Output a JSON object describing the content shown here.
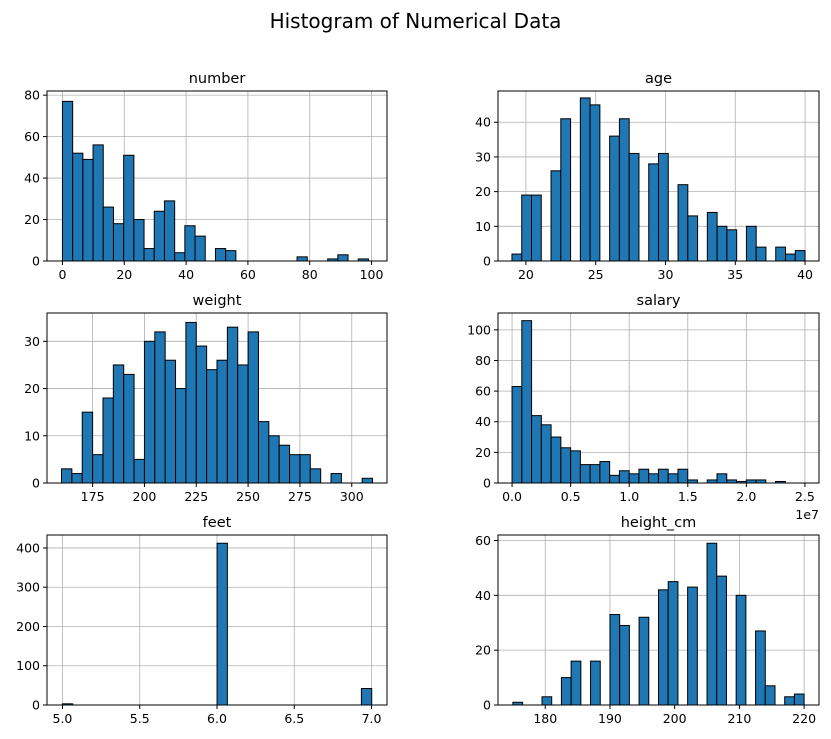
{
  "figure": {
    "title": "Histogram of Numerical Data",
    "bar_color": "#1f77b4",
    "edge_color": "#000000",
    "grid_color": "#b0b0b0"
  },
  "chart_data": [
    {
      "type": "bar",
      "title": "number",
      "bins": 30,
      "bin_start": 0,
      "bin_width": 3.3,
      "values": [
        77,
        52,
        49,
        56,
        26,
        18,
        51,
        20,
        6,
        24,
        29,
        4,
        17,
        12,
        0,
        6,
        5,
        0,
        0,
        0,
        0,
        0,
        0,
        2,
        0,
        0,
        1,
        3,
        0,
        1
      ],
      "xlim": [
        -5,
        105
      ],
      "ylim": [
        0,
        82
      ],
      "xticks": [
        0,
        20,
        40,
        60,
        80,
        100
      ],
      "xtick_labels": [
        "0",
        "20",
        "40",
        "60",
        "80",
        "100"
      ],
      "yticks": [
        0,
        20,
        40,
        60,
        80
      ],
      "ytick_labels": [
        "0",
        "20",
        "40",
        "60",
        "80"
      ],
      "grid": true
    },
    {
      "type": "bar",
      "title": "age",
      "bins": 30,
      "bin_start": 19,
      "bin_width": 0.7,
      "values": [
        2,
        19,
        19,
        0,
        26,
        41,
        0,
        47,
        45,
        0,
        36,
        41,
        31,
        0,
        28,
        31,
        0,
        22,
        13,
        0,
        14,
        10,
        9,
        0,
        10,
        4,
        0,
        4,
        2,
        3
      ],
      "xlim": [
        18,
        41
      ],
      "ylim": [
        0,
        49
      ],
      "xticks": [
        20,
        25,
        30,
        35,
        40
      ],
      "xtick_labels": [
        "20",
        "25",
        "30",
        "35",
        "40"
      ],
      "yticks": [
        0,
        10,
        20,
        30,
        40
      ],
      "ytick_labels": [
        "0",
        "10",
        "20",
        "30",
        "40"
      ],
      "grid": true
    },
    {
      "type": "bar",
      "title": "weight",
      "bins": 30,
      "bin_start": 160,
      "bin_width": 5,
      "values": [
        3,
        2,
        15,
        6,
        18,
        25,
        23,
        5,
        30,
        32,
        26,
        20,
        34,
        29,
        24,
        26,
        33,
        25,
        32,
        13,
        10,
        8,
        6,
        6,
        3,
        0,
        2,
        0,
        0,
        1
      ],
      "xlim": [
        153,
        317
      ],
      "ylim": [
        0,
        36
      ],
      "xticks": [
        175,
        200,
        225,
        250,
        275,
        300
      ],
      "xtick_labels": [
        "175",
        "200",
        "225",
        "250",
        "275",
        "300"
      ],
      "yticks": [
        0,
        10,
        20,
        30
      ],
      "ytick_labels": [
        "0",
        "10",
        "20",
        "30"
      ],
      "grid": true
    },
    {
      "type": "bar",
      "title": "salary",
      "bins": 30,
      "bin_start": 0,
      "bin_width": 0.0833,
      "values": [
        63,
        106,
        44,
        38,
        30,
        23,
        21,
        12,
        12,
        14,
        5,
        8,
        6,
        9,
        6,
        9,
        6,
        9,
        2,
        0,
        2,
        6,
        2,
        1,
        2,
        2,
        0,
        1,
        0,
        0
      ],
      "xlim": [
        -0.12,
        2.62
      ],
      "ylim": [
        0,
        111
      ],
      "xticks": [
        0,
        0.5,
        1.0,
        1.5,
        2.0,
        2.5
      ],
      "xtick_labels": [
        "0.0",
        "0.5",
        "1.0",
        "1.5",
        "2.0",
        "2.5"
      ],
      "yticks": [
        0,
        20,
        40,
        60,
        80,
        100
      ],
      "ytick_labels": [
        "0",
        "20",
        "40",
        "60",
        "80",
        "100"
      ],
      "offset_label": "1e7",
      "grid": true
    },
    {
      "type": "bar",
      "title": "feet",
      "bins": 30,
      "bin_start": 5,
      "bin_width": 0.0667,
      "values": [
        3,
        0,
        0,
        0,
        0,
        0,
        0,
        0,
        0,
        0,
        0,
        0,
        0,
        0,
        0,
        412,
        0,
        0,
        0,
        0,
        0,
        0,
        0,
        0,
        0,
        0,
        0,
        0,
        0,
        42
      ],
      "xlim": [
        4.9,
        7.1
      ],
      "ylim": [
        0,
        433
      ],
      "xticks": [
        5.0,
        5.5,
        6.0,
        6.5,
        7.0
      ],
      "xtick_labels": [
        "5.0",
        "5.5",
        "6.0",
        "6.5",
        "7.0"
      ],
      "yticks": [
        0,
        100,
        200,
        300,
        400
      ],
      "ytick_labels": [
        "0",
        "100",
        "200",
        "300",
        "400"
      ],
      "grid": true
    },
    {
      "type": "bar",
      "title": "height_cm",
      "bins": 30,
      "bin_start": 175,
      "bin_width": 1.5,
      "values": [
        1,
        0,
        0,
        3,
        0,
        10,
        16,
        0,
        16,
        0,
        33,
        29,
        0,
        32,
        0,
        42,
        45,
        0,
        43,
        0,
        59,
        47,
        0,
        40,
        0,
        27,
        7,
        0,
        3,
        4
      ],
      "xlim": [
        172.7,
        222.3
      ],
      "ylim": [
        0,
        62
      ],
      "xticks": [
        180,
        190,
        200,
        210,
        220
      ],
      "xtick_labels": [
        "180",
        "190",
        "200",
        "210",
        "220"
      ],
      "yticks": [
        0,
        20,
        40,
        60
      ],
      "ytick_labels": [
        "0",
        "20",
        "40",
        "60"
      ],
      "grid": true
    }
  ]
}
